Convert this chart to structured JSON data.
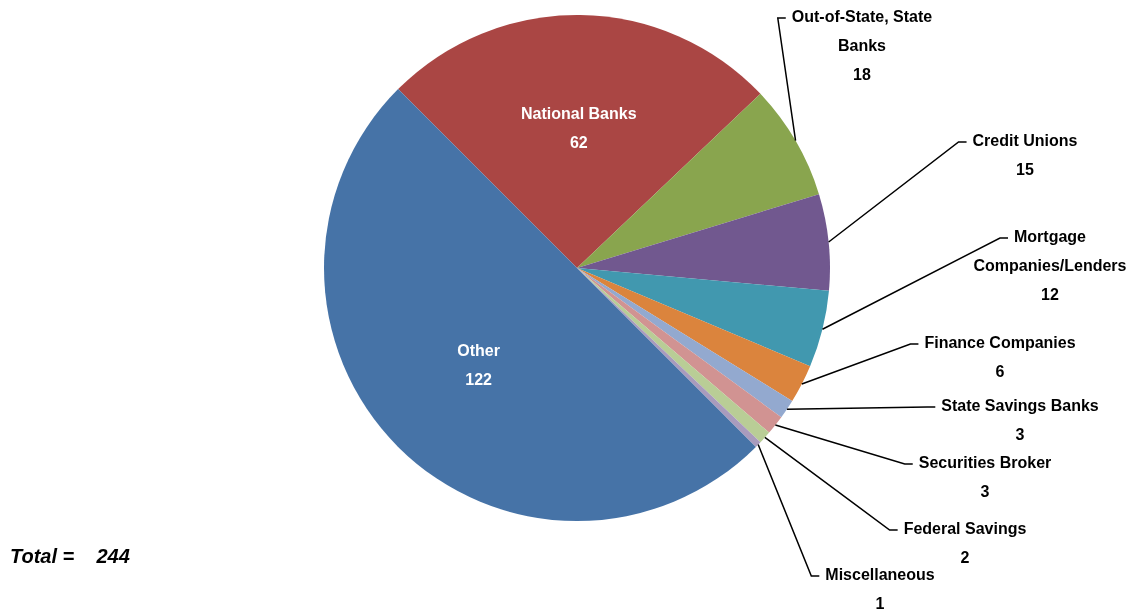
{
  "chart_data": {
    "type": "pie",
    "categories": [
      "National Banks",
      "Out-of-State, State Banks",
      "Credit Unions",
      "Mortgage Companies/Lenders",
      "Finance Companies",
      "State Savings Banks",
      "Securities Broker",
      "Federal Savings",
      "Miscellaneous",
      "Other"
    ],
    "values": [
      62,
      18,
      15,
      12,
      6,
      3,
      3,
      2,
      1,
      122
    ],
    "colors": [
      "#aa4644",
      "#89a54e",
      "#71588f",
      "#4198af",
      "#db843d",
      "#93a9cf",
      "#d19392",
      "#b9cd96",
      "#a99bbd",
      "#4673a7"
    ],
    "data_labels": true,
    "legend": false,
    "annotations": [
      "Total =    244"
    ]
  }
}
